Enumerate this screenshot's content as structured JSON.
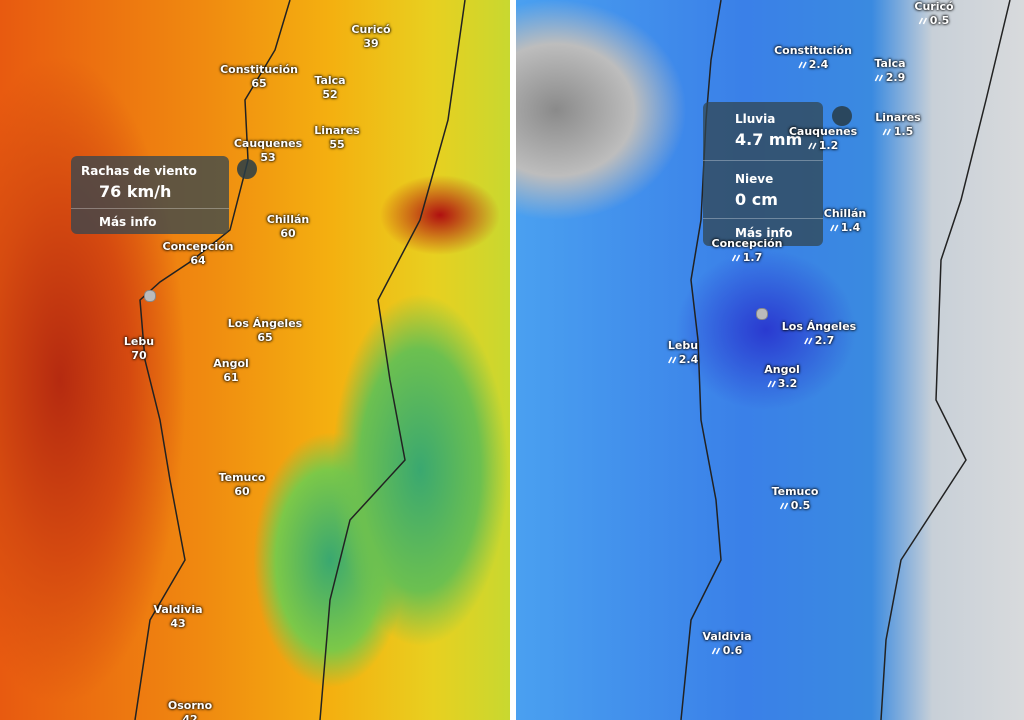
{
  "left_map": {
    "cities": [
      {
        "name": "Curicó",
        "value": 39
      },
      {
        "name": "Constitución",
        "value": 65
      },
      {
        "name": "Talca",
        "value": 52
      },
      {
        "name": "Cauquenes",
        "value": 53
      },
      {
        "name": "Linares",
        "value": 55
      },
      {
        "name": "Chillán",
        "value": 60
      },
      {
        "name": "Concepción",
        "value": 64
      },
      {
        "name": "Los Ángeles",
        "value": 65
      },
      {
        "name": "Lebu",
        "value": 70
      },
      {
        "name": "Angol",
        "value": 61
      },
      {
        "name": "Temuco",
        "value": 60
      },
      {
        "name": "Valdivia",
        "value": 43
      },
      {
        "name": "Osorno",
        "value": 42
      }
    ],
    "popup": {
      "title": "Rachas de viento",
      "value": "76 km/h",
      "link": "Más info"
    }
  },
  "right_map": {
    "cities": [
      {
        "name": "Curicó",
        "value": 0.5
      },
      {
        "name": "Constitución",
        "value": 2.4
      },
      {
        "name": "Talca",
        "value": 2.9
      },
      {
        "name": "Cauquenes",
        "value": 1.2
      },
      {
        "name": "Linares",
        "value": 1.5
      },
      {
        "name": "Chillán",
        "value": 1.4
      },
      {
        "name": "Concepción",
        "value": 1.7
      },
      {
        "name": "Los Ángeles",
        "value": 2.7
      },
      {
        "name": "Lebu",
        "value": 2.4
      },
      {
        "name": "Angol",
        "value": 3.2
      },
      {
        "name": "Temuco",
        "value": 0.5
      },
      {
        "name": "Valdivia",
        "value": 0.6
      }
    ],
    "popup": {
      "rain_label": "Lluvia",
      "rain_value": "4.7 mm",
      "snow_label": "Nieve",
      "snow_value": "0 cm",
      "link": "Más info"
    }
  }
}
